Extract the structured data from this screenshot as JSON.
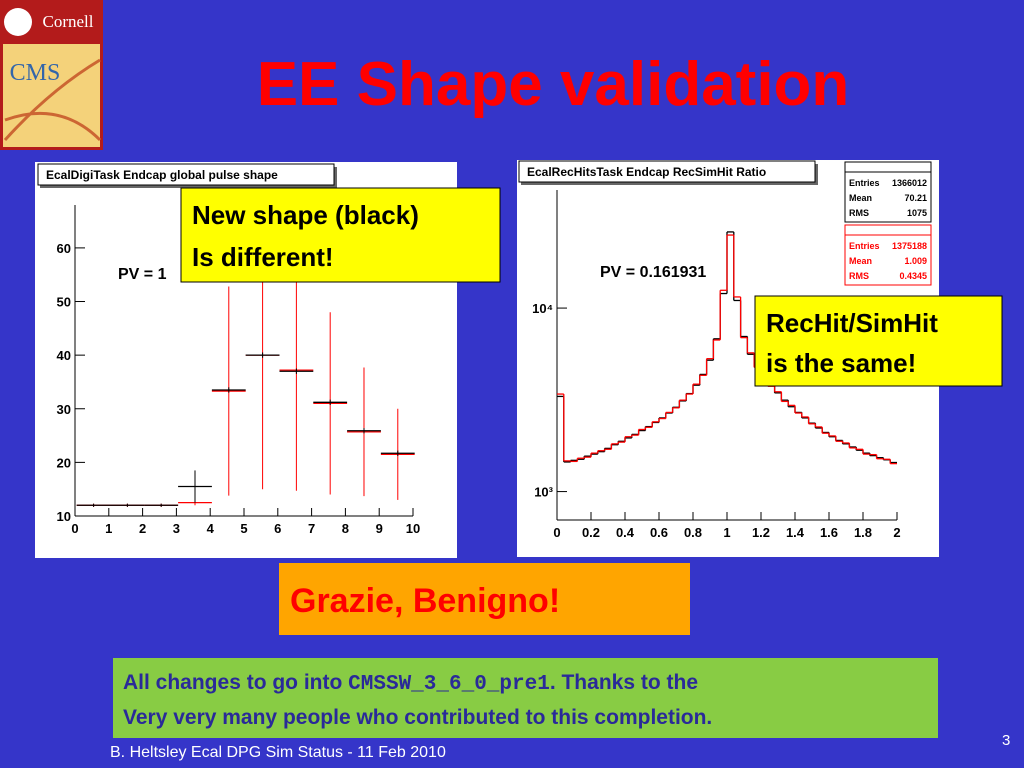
{
  "logo": {
    "top": "Cornell",
    "bottom": "CMS"
  },
  "title": "EE Shape validation",
  "chart_data": [
    {
      "type": "histogram",
      "histtype": "errorbar",
      "title": "EcalDigiTask Endcap global pulse shape",
      "annotation": "PV = 1",
      "bins": [
        0.05,
        1.05,
        2.05,
        3.05,
        4.05,
        5.05,
        6.05,
        7.05,
        8.05,
        9.05,
        10.05
      ],
      "xlim": [
        0,
        10
      ],
      "xticks": [
        0,
        1,
        2,
        3,
        4,
        5,
        6,
        7,
        8,
        9,
        10
      ],
      "ylim": [
        10,
        68
      ],
      "yticks": [
        10,
        20,
        30,
        40,
        50,
        60
      ],
      "series": [
        {
          "color": "#ff0000",
          "values": [
            12,
            12,
            12,
            12.5,
            33.3,
            40,
            37.2,
            31,
            25.7,
            21.5
          ],
          "errors": [
            0.3,
            0.3,
            0.3,
            0.5,
            19.5,
            25,
            22.5,
            17,
            12,
            8.5
          ]
        },
        {
          "color": "#000000",
          "values": [
            12,
            12,
            12,
            15.5,
            33.5,
            40,
            37,
            31.2,
            25.9,
            21.7
          ],
          "errors": [
            0.3,
            0.3,
            0.3,
            3,
            0.5,
            0.5,
            0.5,
            0.5,
            0.5,
            0.5
          ]
        }
      ]
    },
    {
      "type": "histogram",
      "histtype": "step",
      "log_y": true,
      "title": "EcalRecHitsTask Endcap RecSimHit Ratio",
      "annotation": "PV = 0.161931",
      "bins": [
        0,
        0.04,
        0.08,
        0.12,
        0.16,
        0.2,
        0.24,
        0.28,
        0.32,
        0.36,
        0.4,
        0.44,
        0.48,
        0.52,
        0.56,
        0.6,
        0.64,
        0.68,
        0.72,
        0.76,
        0.8,
        0.84,
        0.88,
        0.92,
        0.96,
        1,
        1.04,
        1.08,
        1.12,
        1.16,
        1.2,
        1.24,
        1.28,
        1.32,
        1.36,
        1.4,
        1.44,
        1.48,
        1.52,
        1.56,
        1.6,
        1.64,
        1.68,
        1.72,
        1.76,
        1.8,
        1.84,
        1.88,
        1.92,
        1.96,
        2
      ],
      "xlim": [
        0,
        2
      ],
      "xticks": [
        0,
        0.2,
        0.4,
        0.6,
        0.8,
        1,
        1.2,
        1.4,
        1.6,
        1.8,
        2
      ],
      "ylim": [
        700,
        44000
      ],
      "yticks": [
        {
          "value": 1000,
          "label": "10³"
        },
        {
          "value": 10000,
          "label": "10⁴"
        }
      ],
      "series": [
        {
          "color": "#000000",
          "values": [
            3300,
            1450,
            1480,
            1500,
            1560,
            1600,
            1650,
            1720,
            1800,
            1880,
            1960,
            2050,
            2150,
            2260,
            2380,
            2520,
            2680,
            2880,
            3120,
            3420,
            3800,
            4350,
            5200,
            6800,
            12000,
            26000,
            11000,
            7000,
            5600,
            4800,
            4200,
            3800,
            3450,
            3150,
            2900,
            2700,
            2520,
            2360,
            2220,
            2100,
            1990,
            1900,
            1820,
            1750,
            1680,
            1620,
            1570,
            1530,
            1490,
            1440
          ]
        },
        {
          "color": "#ff0000",
          "values": [
            3400,
            1470,
            1460,
            1520,
            1540,
            1620,
            1670,
            1700,
            1820,
            1860,
            1990,
            2030,
            2180,
            2240,
            2400,
            2500,
            2700,
            2860,
            3150,
            3400,
            3850,
            4300,
            5300,
            6700,
            12500,
            25000,
            11500,
            6900,
            5700,
            4750,
            4250,
            3750,
            3500,
            3100,
            2950,
            2680,
            2550,
            2340,
            2250,
            2080,
            2010,
            1880,
            1840,
            1730,
            1700,
            1600,
            1590,
            1510,
            1500,
            1420
          ]
        }
      ],
      "stats": [
        {
          "color": "#000000",
          "rows": [
            [
              "Entries",
              1366012
            ],
            [
              "Mean",
              70.21
            ],
            [
              "RMS",
              1075
            ]
          ]
        },
        {
          "color": "#ff0000",
          "rows": [
            [
              "Entries",
              1375188
            ],
            [
              "Mean",
              1.009
            ],
            [
              "RMS",
              0.4345
            ]
          ]
        }
      ]
    }
  ],
  "callouts": [
    {
      "lines": [
        "New shape (black)",
        "Is different!"
      ]
    },
    {
      "lines": [
        "RecHit/SimHit",
        "is the same!"
      ]
    }
  ],
  "thanks": "Grazie, Benigno!",
  "note": {
    "parts": [
      "All changes to go into ",
      "CMSSW_3_6_0_pre1",
      ". Thanks to the"
    ],
    "line2": "Very very many people who contributed to this completion."
  },
  "footer": "B. Heltsley Ecal DPG Sim Status - 11 Feb 2010",
  "page_number": 3
}
